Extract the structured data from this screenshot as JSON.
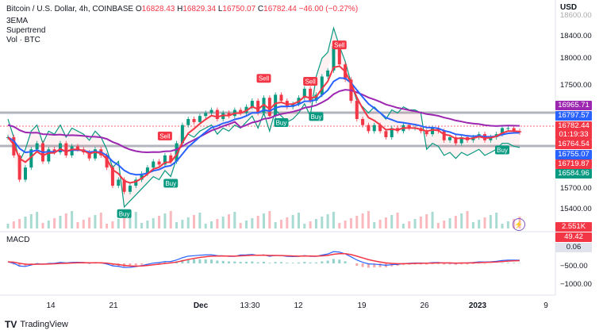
{
  "header": {
    "symbol": "Bitcoin / U.S. Dollar, 4h, COINBASE",
    "o_label": "O",
    "o": "16828.43",
    "h_label": "H",
    "h": "16829.34",
    "l_label": "L",
    "l": "16750.07",
    "c_label": "C",
    "c": "16782.44",
    "change": "−46.00 (−0.27%)"
  },
  "indicators": [
    "3EMA",
    "Supertrend",
    "Vol · BTC"
  ],
  "axis": {
    "currency": "USD",
    "y_ticks": [
      "18600.00",
      "18400.00",
      "18000.00",
      "17500.00",
      "15700.00",
      "15400.00",
      "−500.00",
      "−1000.00"
    ]
  },
  "price_tags": [
    {
      "label": "16965.71",
      "color": "#9c27b0"
    },
    {
      "label": "16797.57",
      "color": "#2962ff"
    },
    {
      "label": "16782.44",
      "color": "#f23645"
    },
    {
      "label": "01:19:33",
      "color": "#f23645"
    },
    {
      "label": "16764.54",
      "color": "#f23645"
    },
    {
      "label": "16755.07",
      "color": "#2962ff"
    },
    {
      "label": "16719.87",
      "color": "#f23645"
    },
    {
      "label": "16584.96",
      "color": "#089981"
    }
  ],
  "volume_tag": {
    "label": "2.551K",
    "color": "#f23645"
  },
  "macd": {
    "title": "MACD",
    "tags": [
      {
        "label": "49.42",
        "color": "#f23645"
      },
      {
        "label": "0.06",
        "color": "#e0e3eb"
      }
    ]
  },
  "x_ticks": [
    {
      "label": "14",
      "bold": false
    },
    {
      "label": "21",
      "bold": false
    },
    {
      "label": "Dec",
      "bold": true
    },
    {
      "label": "13:30",
      "bold": false
    },
    {
      "label": "12",
      "bold": false
    },
    {
      "label": "19",
      "bold": false
    },
    {
      "label": "26",
      "bold": false
    },
    {
      "label": "2023",
      "bold": true
    },
    {
      "label": "9",
      "bold": false
    }
  ],
  "brand": "TradingView",
  "chart_data": {
    "type": "candlestick",
    "ylim": [
      15300,
      18700
    ],
    "close": [
      16700,
      16400,
      16000,
      16200,
      16500,
      16600,
      16300,
      16500,
      16450,
      16600,
      16400,
      16550,
      16500,
      16450,
      16350,
      16500,
      16400,
      16200,
      15900,
      16000,
      15800,
      15900,
      16000,
      16100,
      16200,
      16300,
      16250,
      16400,
      16300,
      16600,
      16900,
      17000,
      16950,
      17050,
      17100,
      17150,
      17000,
      17100,
      17050,
      17150,
      17100,
      17200,
      17300,
      17100,
      17350,
      17050,
      17400,
      17300,
      17200,
      17250,
      17350,
      17500,
      17300,
      17400,
      17700,
      17800,
      18200,
      17900,
      17650,
      17300,
      17000,
      16900,
      16800,
      16900,
      16800,
      16700,
      16850,
      16800,
      16900,
      16850,
      16850,
      16800,
      16750,
      16850,
      16800,
      16650,
      16700,
      16600,
      16700,
      16650,
      16700,
      16750,
      16650,
      16700,
      16750,
      16850,
      16850,
      16800,
      16780
    ],
    "markers": [
      {
        "text": "Sell",
        "type": "sell",
        "i": 27
      },
      {
        "text": "Buy",
        "type": "buy",
        "i": 20
      },
      {
        "text": "Buy",
        "type": "buy",
        "i": 28
      },
      {
        "text": "Sell",
        "type": "sell",
        "i": 44
      },
      {
        "text": "Buy",
        "type": "buy",
        "i": 47
      },
      {
        "text": "Sell",
        "type": "sell",
        "i": 52
      },
      {
        "text": "Buy",
        "type": "buy",
        "i": 53
      },
      {
        "text": "Sell",
        "type": "sell",
        "i": 57
      },
      {
        "text": "Buy",
        "type": "buy",
        "i": 85
      }
    ],
    "series": [
      {
        "name": "EMA fast",
        "color": "#f23645"
      },
      {
        "name": "EMA mid",
        "color": "#2962ff"
      },
      {
        "name": "EMA slow",
        "color": "#9c27b0"
      }
    ]
  }
}
